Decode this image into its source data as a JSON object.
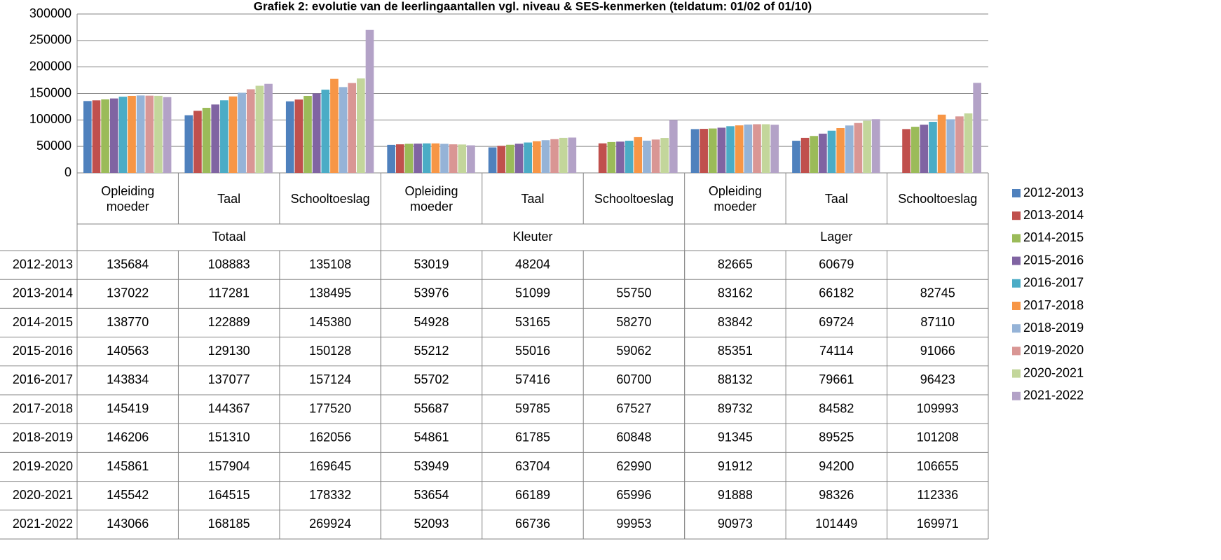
{
  "chart_data": {
    "type": "bar",
    "title": "Grafiek 2: evolutie van de leerlingaantallen vgl. niveau & SES-kenmerken  (teldatum: 01/02 of 01/10)",
    "categories": [
      "Opleiding moeder",
      "Taal",
      "Schooltoeslag",
      "Opleiding moeder",
      "Taal",
      "Schooltoeslag",
      "Opleiding moeder",
      "Taal",
      "Schooltoeslag"
    ],
    "groups": [
      "Totaal",
      "Kleuter",
      "Lager"
    ],
    "ylim": [
      0,
      300000
    ],
    "yticks": [
      0,
      50000,
      100000,
      150000,
      200000,
      250000,
      300000
    ],
    "grid": true,
    "legend": "right",
    "data_table": true,
    "series": [
      {
        "name": "2012-2013",
        "color": "#4F81BD",
        "values": [
          135684,
          108883,
          135108,
          53019,
          48204,
          null,
          82665,
          60679,
          null
        ]
      },
      {
        "name": "2013-2014",
        "color": "#C0504D",
        "values": [
          137022,
          117281,
          138495,
          53976,
          51099,
          55750,
          83162,
          66182,
          82745
        ]
      },
      {
        "name": "2014-2015",
        "color": "#9BBB59",
        "values": [
          138770,
          122889,
          145380,
          54928,
          53165,
          58270,
          83842,
          69724,
          87110
        ]
      },
      {
        "name": "2015-2016",
        "color": "#8064A2",
        "values": [
          140563,
          129130,
          150128,
          55212,
          55016,
          59062,
          85351,
          74114,
          91066
        ]
      },
      {
        "name": "2016-2017",
        "color": "#4BACC6",
        "values": [
          143834,
          137077,
          157124,
          55702,
          57416,
          60700,
          88132,
          79661,
          96423
        ]
      },
      {
        "name": "2017-2018",
        "color": "#F79646",
        "values": [
          145419,
          144367,
          177520,
          55687,
          59785,
          67527,
          89732,
          84582,
          109993
        ]
      },
      {
        "name": "2018-2019",
        "color": "#95B3D7",
        "values": [
          146206,
          151310,
          162056,
          54861,
          61785,
          60848,
          91345,
          89525,
          101208
        ]
      },
      {
        "name": "2019-2020",
        "color": "#D99694",
        "values": [
          145861,
          157904,
          169645,
          53949,
          63704,
          62990,
          91912,
          94200,
          106655
        ]
      },
      {
        "name": "2020-2021",
        "color": "#C3D69B",
        "values": [
          145542,
          164515,
          178332,
          53654,
          66189,
          65996,
          91888,
          98326,
          112336
        ]
      },
      {
        "name": "2021-2022",
        "color": "#B3A2C7",
        "values": [
          143066,
          168185,
          269924,
          52093,
          66736,
          99953,
          90973,
          101449,
          169971
        ]
      }
    ]
  }
}
